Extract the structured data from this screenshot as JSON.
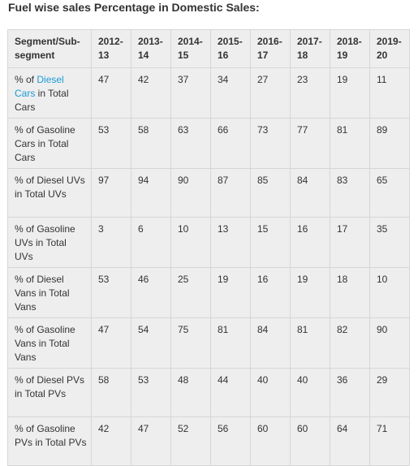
{
  "title": "Fuel wise sales Percentage in Domestic Sales:",
  "table": {
    "header_segment": "Segment/Sub-\nsegment",
    "years": [
      "2012-\n13",
      "2013-\n14",
      "2014-\n15",
      "2015-\n16",
      "2016-\n17",
      "2017-\n18",
      "2018-\n19",
      "2019-\n20"
    ],
    "rows": [
      {
        "label_prefix": "% of ",
        "label_link": "Diesel Cars",
        "label_suffix": " in Total Cars",
        "values": [
          "47",
          "42",
          "37",
          "34",
          "27",
          "23",
          "19",
          "11"
        ]
      },
      {
        "label": "% of Gasoline Cars in Total Cars",
        "values": [
          "53",
          "58",
          "63",
          "66",
          "73",
          "77",
          "81",
          "89"
        ]
      },
      {
        "label": "% of Diesel UVs in Total UVs",
        "values": [
          "97",
          "94",
          "90",
          "87",
          "85",
          "84",
          "83",
          "65"
        ]
      },
      {
        "label": "% of Gasoline UVs in Total UVs",
        "values": [
          "3",
          "6",
          "10",
          "13",
          "15",
          "16",
          "17",
          "35"
        ]
      },
      {
        "label": "% of Diesel Vans in Total Vans",
        "values": [
          "53",
          "46",
          "25",
          "19",
          "16",
          "19",
          "18",
          "10"
        ]
      },
      {
        "label": "% of Gasoline Vans in Total Vans",
        "values": [
          "47",
          "54",
          "75",
          "81",
          "84",
          "81",
          "82",
          "90"
        ]
      },
      {
        "label": "% of Diesel PVs in Total PVs",
        "values": [
          "58",
          "53",
          "48",
          "44",
          "40",
          "40",
          "36",
          "29"
        ]
      },
      {
        "label": "% of Gasoline PVs in Total PVs",
        "values": [
          "42",
          "47",
          "52",
          "56",
          "60",
          "60",
          "64",
          "71"
        ]
      }
    ]
  },
  "colors": {
    "link": "#1a9bd7",
    "cell_background": "#eeeeee",
    "border": "#d6d6d6",
    "text": "#333333"
  }
}
